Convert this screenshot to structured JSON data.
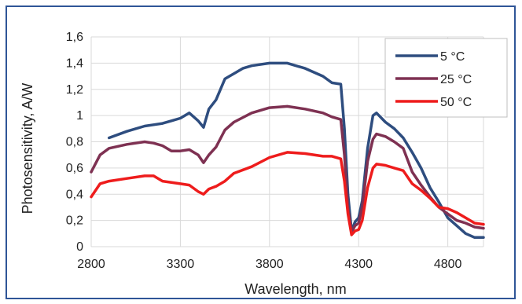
{
  "chart_data": {
    "type": "line",
    "title": "",
    "xlabel": "Wavelength, nm",
    "ylabel": "Photosensitivity, A/W",
    "xlim": [
      2800,
      5000
    ],
    "ylim": [
      0,
      1.6
    ],
    "x_ticks": [
      2800,
      3300,
      3800,
      4300,
      4800
    ],
    "y_ticks": [
      0,
      0.2,
      0.4,
      0.6,
      0.8,
      1,
      1.2,
      1.4,
      1.6
    ],
    "x_tick_labels": [
      "2800",
      "3300",
      "3800",
      "4300",
      "4800"
    ],
    "y_tick_labels": [
      "0",
      "0,2",
      "0,4",
      "0,6",
      "0,8",
      "1",
      "1,2",
      "1,4",
      "1,6"
    ],
    "grid": "both",
    "legend_position": "top-right",
    "series": [
      {
        "name": "5 °C",
        "color": "#2e4d7f",
        "points": [
          [
            2900,
            0.83
          ],
          [
            3000,
            0.88
          ],
          [
            3100,
            0.92
          ],
          [
            3150,
            0.93
          ],
          [
            3200,
            0.94
          ],
          [
            3250,
            0.96
          ],
          [
            3300,
            0.98
          ],
          [
            3350,
            1.02
          ],
          [
            3400,
            0.96
          ],
          [
            3430,
            0.91
          ],
          [
            3460,
            1.05
          ],
          [
            3500,
            1.12
          ],
          [
            3550,
            1.28
          ],
          [
            3600,
            1.32
          ],
          [
            3650,
            1.36
          ],
          [
            3700,
            1.38
          ],
          [
            3800,
            1.4
          ],
          [
            3900,
            1.4
          ],
          [
            4000,
            1.36
          ],
          [
            4100,
            1.3
          ],
          [
            4150,
            1.25
          ],
          [
            4200,
            1.24
          ],
          [
            4220,
            0.9
          ],
          [
            4240,
            0.4
          ],
          [
            4260,
            0.12
          ],
          [
            4280,
            0.19
          ],
          [
            4300,
            0.22
          ],
          [
            4320,
            0.35
          ],
          [
            4350,
            0.75
          ],
          [
            4380,
            1.0
          ],
          [
            4400,
            1.02
          ],
          [
            4450,
            0.95
          ],
          [
            4500,
            0.9
          ],
          [
            4550,
            0.83
          ],
          [
            4600,
            0.72
          ],
          [
            4650,
            0.6
          ],
          [
            4700,
            0.45
          ],
          [
            4750,
            0.34
          ],
          [
            4800,
            0.22
          ],
          [
            4850,
            0.16
          ],
          [
            4900,
            0.1
          ],
          [
            4950,
            0.07
          ],
          [
            5000,
            0.07
          ]
        ]
      },
      {
        "name": "25 °C",
        "color": "#7e3152",
        "points": [
          [
            2800,
            0.57
          ],
          [
            2850,
            0.7
          ],
          [
            2900,
            0.75
          ],
          [
            3000,
            0.78
          ],
          [
            3100,
            0.8
          ],
          [
            3150,
            0.79
          ],
          [
            3200,
            0.77
          ],
          [
            3250,
            0.73
          ],
          [
            3300,
            0.73
          ],
          [
            3350,
            0.74
          ],
          [
            3400,
            0.7
          ],
          [
            3430,
            0.64
          ],
          [
            3460,
            0.7
          ],
          [
            3500,
            0.76
          ],
          [
            3550,
            0.89
          ],
          [
            3600,
            0.95
          ],
          [
            3700,
            1.02
          ],
          [
            3800,
            1.06
          ],
          [
            3900,
            1.07
          ],
          [
            4000,
            1.05
          ],
          [
            4100,
            1.02
          ],
          [
            4150,
            0.99
          ],
          [
            4200,
            0.97
          ],
          [
            4220,
            0.7
          ],
          [
            4240,
            0.3
          ],
          [
            4260,
            0.11
          ],
          [
            4280,
            0.16
          ],
          [
            4300,
            0.18
          ],
          [
            4320,
            0.3
          ],
          [
            4350,
            0.65
          ],
          [
            4380,
            0.82
          ],
          [
            4400,
            0.86
          ],
          [
            4450,
            0.84
          ],
          [
            4500,
            0.8
          ],
          [
            4550,
            0.75
          ],
          [
            4600,
            0.57
          ],
          [
            4650,
            0.47
          ],
          [
            4700,
            0.38
          ],
          [
            4750,
            0.3
          ],
          [
            4800,
            0.25
          ],
          [
            4850,
            0.2
          ],
          [
            4900,
            0.18
          ],
          [
            4950,
            0.15
          ],
          [
            5000,
            0.14
          ]
        ]
      },
      {
        "name": "50 °C",
        "color": "#ee1c1c",
        "points": [
          [
            2800,
            0.38
          ],
          [
            2850,
            0.48
          ],
          [
            2900,
            0.5
          ],
          [
            3000,
            0.52
          ],
          [
            3100,
            0.54
          ],
          [
            3150,
            0.54
          ],
          [
            3200,
            0.5
          ],
          [
            3300,
            0.48
          ],
          [
            3350,
            0.47
          ],
          [
            3400,
            0.42
          ],
          [
            3430,
            0.4
          ],
          [
            3460,
            0.44
          ],
          [
            3500,
            0.46
          ],
          [
            3550,
            0.5
          ],
          [
            3600,
            0.56
          ],
          [
            3700,
            0.61
          ],
          [
            3800,
            0.68
          ],
          [
            3900,
            0.72
          ],
          [
            4000,
            0.71
          ],
          [
            4100,
            0.69
          ],
          [
            4150,
            0.69
          ],
          [
            4200,
            0.67
          ],
          [
            4220,
            0.5
          ],
          [
            4240,
            0.25
          ],
          [
            4260,
            0.09
          ],
          [
            4280,
            0.12
          ],
          [
            4300,
            0.13
          ],
          [
            4320,
            0.2
          ],
          [
            4350,
            0.45
          ],
          [
            4380,
            0.6
          ],
          [
            4400,
            0.63
          ],
          [
            4450,
            0.62
          ],
          [
            4500,
            0.6
          ],
          [
            4550,
            0.58
          ],
          [
            4600,
            0.48
          ],
          [
            4650,
            0.43
          ],
          [
            4700,
            0.37
          ],
          [
            4750,
            0.3
          ],
          [
            4800,
            0.29
          ],
          [
            4850,
            0.26
          ],
          [
            4900,
            0.22
          ],
          [
            4950,
            0.18
          ],
          [
            5000,
            0.17
          ]
        ]
      }
    ]
  }
}
